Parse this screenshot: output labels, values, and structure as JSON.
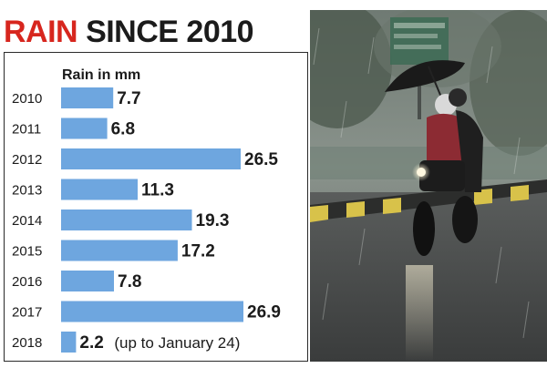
{
  "headline": {
    "part1": "RAIN",
    "part2": "SINCE 2010"
  },
  "colors": {
    "accent": "#d7261e",
    "bar": "#6ea6df",
    "text": "#1b1b1b"
  },
  "chart_data": {
    "type": "bar",
    "orientation": "horizontal",
    "title": "RAIN SINCE 2010",
    "unit_label": "Rain in mm",
    "categories": [
      "2010",
      "2011",
      "2012",
      "2013",
      "2014",
      "2015",
      "2016",
      "2017",
      "2018"
    ],
    "values": [
      7.7,
      6.8,
      26.5,
      11.3,
      19.3,
      17.2,
      7.8,
      26.9,
      2.2
    ],
    "value_labels": [
      "7.7",
      "6.8",
      "26.5",
      "11.3",
      "19.3",
      "17.2",
      "7.8",
      "26.9",
      "2.2"
    ],
    "annotations": [
      {
        "category": "2018",
        "text": "(up to January 24)"
      }
    ],
    "grid": false,
    "legend": "none"
  },
  "photo": {
    "description_icon": "rainy-street-motorcycle-umbrella",
    "sign_color": "#3d6b55"
  }
}
